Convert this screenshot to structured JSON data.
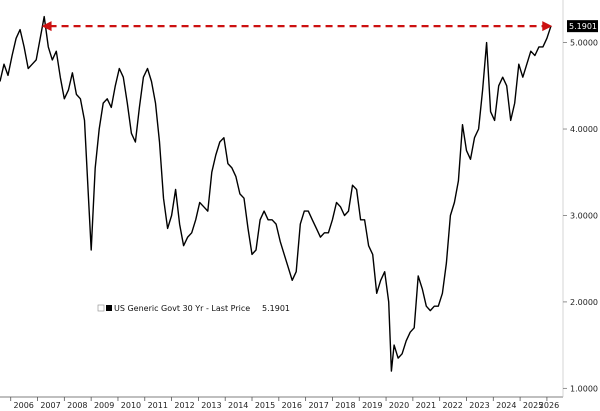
{
  "chart_data": {
    "type": "line",
    "grid": false,
    "legend_position": "lower-left",
    "xlim": [
      2005.6,
      2026.6
    ],
    "ylim": [
      0.9,
      5.4
    ],
    "x_ticks": [
      2006,
      2007,
      2008,
      2009,
      2010,
      2011,
      2012,
      2013,
      2014,
      2015,
      2016,
      2017,
      2018,
      2019,
      2020,
      2021,
      2022,
      2023,
      2024,
      2025,
      2026
    ],
    "y_ticks": [
      1,
      2,
      3,
      4,
      5
    ],
    "y_tick_labels": [
      "1.0000",
      "2.0000",
      "3.0000",
      "4.0000",
      "5.0000"
    ],
    "colors": {
      "series": "#000000",
      "reference_arrow": "#cc1111",
      "last_price_tag": "#000000"
    },
    "reference_line": {
      "style": "dashed-arrow",
      "from_x": 2007.15,
      "to_x": 2026.2,
      "y": 5.19
    },
    "last_price": {
      "label": "5.1901",
      "value": 5.1901
    },
    "series": [
      {
        "name": "US Generic Govt 30 Yr - Last Price",
        "x": [
          2005.6,
          2005.75,
          2005.9,
          2006.05,
          2006.2,
          2006.35,
          2006.5,
          2006.65,
          2006.8,
          2006.95,
          2007.1,
          2007.25,
          2007.4,
          2007.55,
          2007.7,
          2007.85,
          2008.0,
          2008.15,
          2008.3,
          2008.45,
          2008.6,
          2008.75,
          2008.9,
          2009.0,
          2009.15,
          2009.3,
          2009.45,
          2009.6,
          2009.75,
          2009.9,
          2010.05,
          2010.2,
          2010.35,
          2010.5,
          2010.65,
          2010.8,
          2010.95,
          2011.1,
          2011.25,
          2011.4,
          2011.55,
          2011.7,
          2011.85,
          2012.0,
          2012.15,
          2012.3,
          2012.45,
          2012.6,
          2012.75,
          2012.9,
          2013.05,
          2013.2,
          2013.35,
          2013.5,
          2013.65,
          2013.8,
          2013.95,
          2014.1,
          2014.25,
          2014.4,
          2014.55,
          2014.7,
          2014.85,
          2015.0,
          2015.15,
          2015.3,
          2015.45,
          2015.6,
          2015.75,
          2015.9,
          2016.05,
          2016.2,
          2016.35,
          2016.5,
          2016.65,
          2016.8,
          2016.95,
          2017.1,
          2017.25,
          2017.4,
          2017.55,
          2017.7,
          2017.85,
          2018.0,
          2018.15,
          2018.3,
          2018.45,
          2018.6,
          2018.75,
          2018.9,
          2019.05,
          2019.2,
          2019.35,
          2019.5,
          2019.65,
          2019.8,
          2019.95,
          2020.1,
          2020.2,
          2020.3,
          2020.45,
          2020.6,
          2020.75,
          2020.9,
          2021.05,
          2021.2,
          2021.35,
          2021.5,
          2021.65,
          2021.8,
          2021.95,
          2022.1,
          2022.25,
          2022.4,
          2022.55,
          2022.7,
          2022.85,
          2023.0,
          2023.15,
          2023.3,
          2023.45,
          2023.6,
          2023.75,
          2023.9,
          2024.05,
          2024.2,
          2024.35,
          2024.5,
          2024.65,
          2024.8,
          2024.95,
          2025.1,
          2025.25,
          2025.4,
          2025.55,
          2025.7,
          2025.85,
          2026.0,
          2026.15
        ],
        "y": [
          4.55,
          4.75,
          4.62,
          4.85,
          5.05,
          5.15,
          4.95,
          4.7,
          4.75,
          4.8,
          5.05,
          5.3,
          4.95,
          4.8,
          4.9,
          4.6,
          4.35,
          4.45,
          4.65,
          4.4,
          4.35,
          4.1,
          3.2,
          2.6,
          3.55,
          4.0,
          4.3,
          4.35,
          4.25,
          4.5,
          4.7,
          4.6,
          4.3,
          3.95,
          3.85,
          4.25,
          4.6,
          4.7,
          4.55,
          4.3,
          3.85,
          3.2,
          2.85,
          3.0,
          3.3,
          2.9,
          2.65,
          2.75,
          2.8,
          2.95,
          3.15,
          3.1,
          3.05,
          3.5,
          3.7,
          3.85,
          3.9,
          3.6,
          3.55,
          3.45,
          3.25,
          3.2,
          2.85,
          2.55,
          2.6,
          2.95,
          3.05,
          2.95,
          2.95,
          2.9,
          2.7,
          2.55,
          2.4,
          2.25,
          2.35,
          2.9,
          3.05,
          3.05,
          2.95,
          2.85,
          2.75,
          2.8,
          2.8,
          2.95,
          3.15,
          3.1,
          3.0,
          3.05,
          3.35,
          3.3,
          2.95,
          2.95,
          2.65,
          2.55,
          2.1,
          2.25,
          2.35,
          2.0,
          1.2,
          1.5,
          1.35,
          1.4,
          1.55,
          1.65,
          1.7,
          2.3,
          2.15,
          1.95,
          1.9,
          1.95,
          1.95,
          2.1,
          2.45,
          3.0,
          3.15,
          3.4,
          4.05,
          3.75,
          3.65,
          3.9,
          4.0,
          4.45,
          5.0,
          4.2,
          4.1,
          4.5,
          4.6,
          4.5,
          4.1,
          4.3,
          4.75,
          4.6,
          4.75,
          4.9,
          4.85,
          4.95,
          4.95,
          5.05,
          5.19
        ]
      }
    ]
  }
}
